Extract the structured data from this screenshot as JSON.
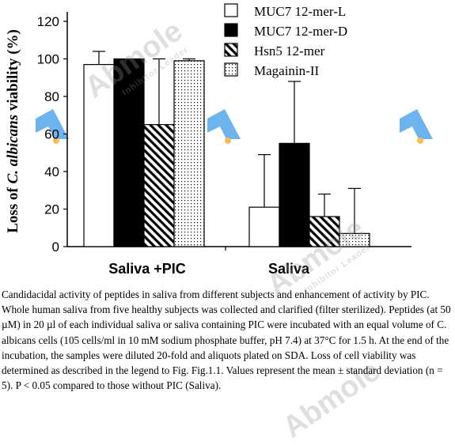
{
  "chart_data": {
    "type": "bar",
    "ylabel_prefix": "Loss of ",
    "ylabel_italic": "C. albicans",
    "ylabel_suffix": " viability (%)",
    "ylim": [
      0,
      120
    ],
    "yticks": [
      "0",
      "20",
      "40",
      "60",
      "80",
      "100",
      "120"
    ],
    "categories": [
      "Saliva +PIC",
      "Saliva"
    ],
    "series": [
      {
        "name": "MUC7 12-mer-L",
        "pattern": "white",
        "values": [
          97,
          21
        ],
        "errors": [
          7,
          28
        ]
      },
      {
        "name": "MUC7 12-mer-D",
        "pattern": "black",
        "values": [
          100,
          55
        ],
        "errors": [
          0,
          33
        ]
      },
      {
        "name": "Hsn5 12-mer",
        "pattern": "hatch",
        "values": [
          65,
          16
        ],
        "errors": [
          35,
          12
        ]
      },
      {
        "name": "Magainin-II",
        "pattern": "dots",
        "values": [
          99,
          7
        ],
        "errors": [
          1,
          24
        ]
      }
    ],
    "legend_position": "top-right",
    "grid": false
  },
  "caption": "Candidacidal activity of peptides in saliva from different subjects and enhancement of activity by PIC. Whole human saliva from five healthy subjects was collected and clarified (filter sterilized). Peptides (at 50 µM) in 20 µl of each individual saliva or saliva containing PIC were incubated with an equal volume of C. albicans cells (105 cells/ml in 10 mM sodium phosphate buffer, pH 7.4) at 37°C for 1.5 h. At the end of the incubation, the samples were diluted 20-fold and aliquots plated on SDA. Loss of cell viability was determined as described in the legend to Fig.   Fig.1.1. Values represent the mean ± standard deviation (n = 5). P < 0.05 compared to those without PIC (Saliva).",
  "watermark": {
    "brand": "Abmole",
    "tagline": "Inhibitor Leader",
    "logo_color": "#3d9be9",
    "dot_color": "#f5a623"
  }
}
